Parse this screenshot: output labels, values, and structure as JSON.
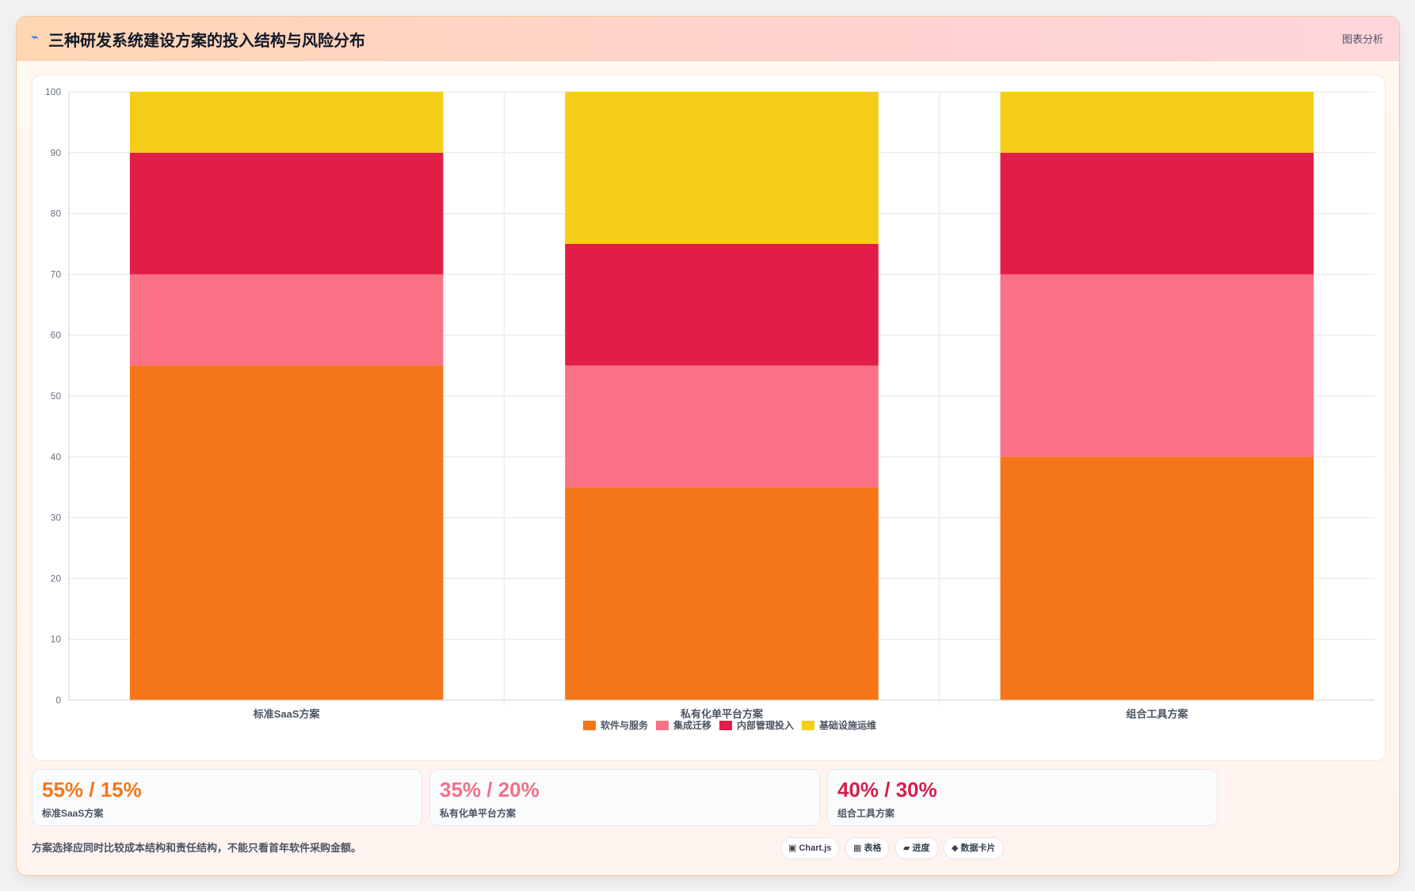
{
  "header": {
    "icon": "⌁",
    "title": "三种研发系统建设方案的投入结构与风险分布",
    "tag": "图表分析"
  },
  "chart_data": {
    "type": "bar",
    "stacked": true,
    "categories": [
      "标准SaaS方案",
      "私有化单平台方案",
      "组合工具方案"
    ],
    "series": [
      {
        "name": "软件与服务",
        "color": "#f57618",
        "values": [
          55,
          35,
          40
        ]
      },
      {
        "name": "集成迁移",
        "color": "#fb7185",
        "values": [
          15,
          20,
          30
        ]
      },
      {
        "name": "内部管理投入",
        "color": "#e11d48",
        "values": [
          20,
          20,
          20
        ]
      },
      {
        "name": "基础设施运维",
        "color": "#f6cd16",
        "values": [
          10,
          25,
          10
        ]
      }
    ],
    "ylim": [
      0,
      100
    ],
    "yticks": [
      "0",
      "10",
      "20",
      "30",
      "40",
      "50",
      "60",
      "70",
      "80",
      "90",
      "100"
    ],
    "grid": true,
    "legend": "bottom"
  },
  "stats": [
    {
      "value": "55% / 15%",
      "label": "标准SaaS方案",
      "color": "#f57618"
    },
    {
      "value": "35% / 20%",
      "label": "私有化单平台方案",
      "color": "#f0718a"
    },
    {
      "value": "40% / 30%",
      "label": "组合工具方案",
      "color": "#d61f4c"
    }
  ],
  "footer": {
    "note": "方案选择应同时比较成本结构和责任结构，不能只看首年软件采购金额。",
    "chips": [
      "▣ Chart.js",
      "▦ 表格",
      "▰ 进度",
      "◆ 数据卡片"
    ]
  }
}
